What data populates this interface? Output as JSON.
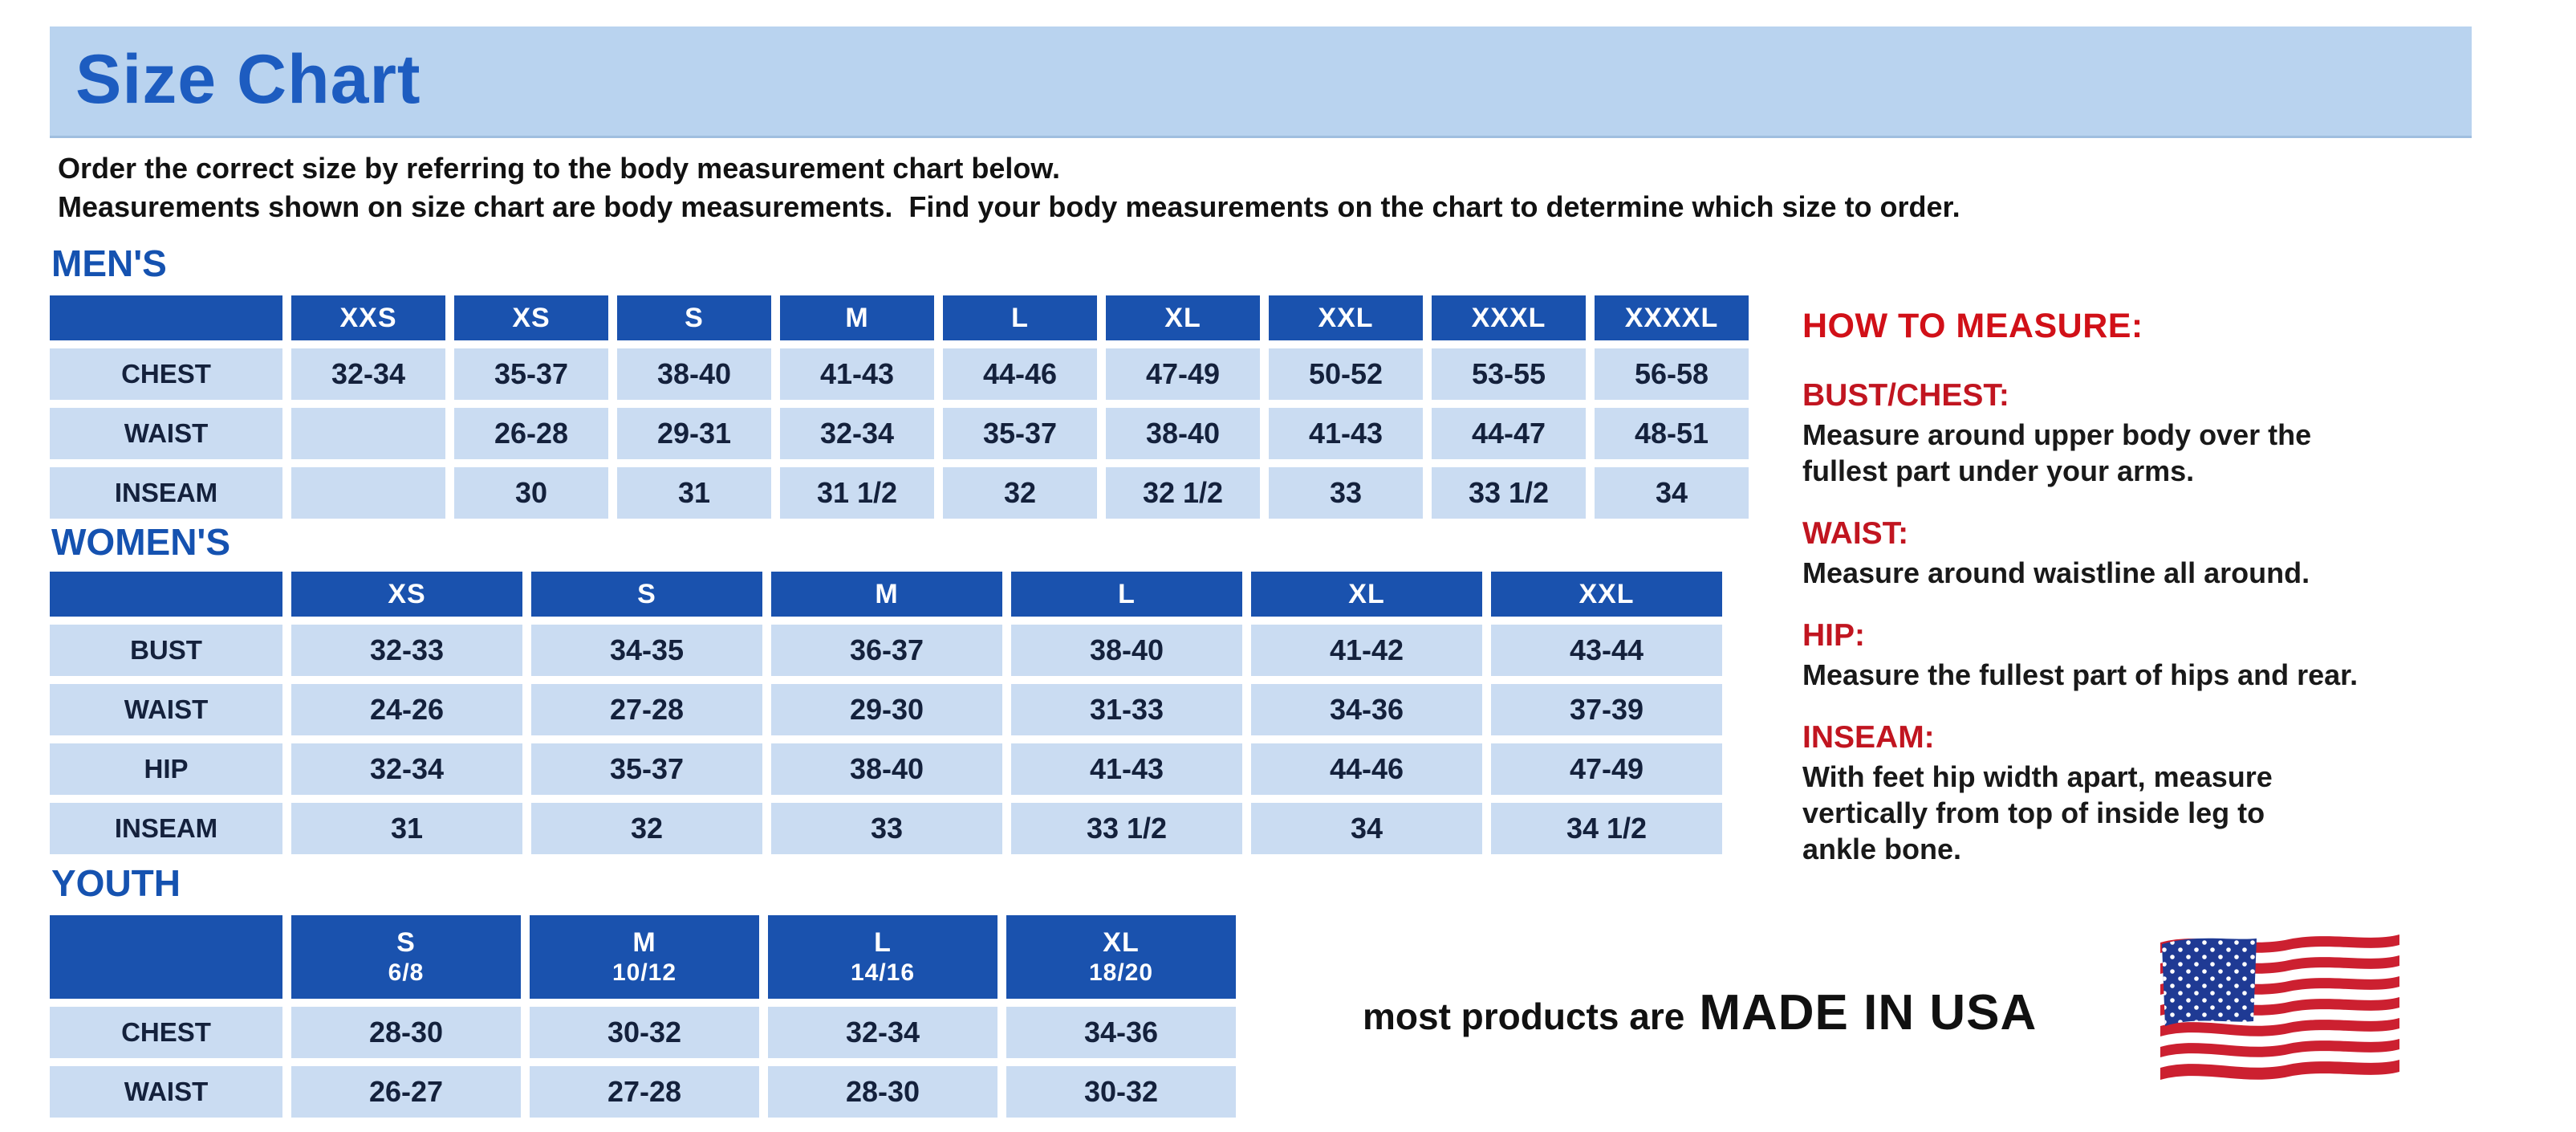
{
  "page": {
    "title": "Size Chart",
    "intro_line1": "Order the correct size by referring to the body measurement chart below.",
    "intro_line2": "Measurements shown on size chart are body measurements.  Find your body measurements on the chart to determine which size to order."
  },
  "colors": {
    "banner_bg": "#b9d3ef",
    "heading_blue": "#1552b0",
    "table_header_bg": "#1a52ae",
    "table_cell_bg": "#cadcf2",
    "cell_text": "#14213c",
    "accent_red": "#c11520"
  },
  "tables": {
    "mens": {
      "section_label": "MEN'S",
      "columns": [
        "XXS",
        "XS",
        "S",
        "M",
        "L",
        "XL",
        "XXL",
        "XXXL",
        "XXXXL"
      ],
      "rows": [
        {
          "label": "CHEST",
          "values": [
            "32-34",
            "35-37",
            "38-40",
            "41-43",
            "44-46",
            "47-49",
            "50-52",
            "53-55",
            "56-58"
          ]
        },
        {
          "label": "WAIST",
          "values": [
            "",
            "26-28",
            "29-31",
            "32-34",
            "35-37",
            "38-40",
            "41-43",
            "44-47",
            "48-51"
          ]
        },
        {
          "label": "INSEAM",
          "values": [
            "",
            "30",
            "31",
            "31 1/2",
            "32",
            "32 1/2",
            "33",
            "33 1/2",
            "34"
          ]
        }
      ]
    },
    "womens": {
      "section_label": "WOMEN'S",
      "columns": [
        "XS",
        "S",
        "M",
        "L",
        "XL",
        "XXL"
      ],
      "rows": [
        {
          "label": "BUST",
          "values": [
            "32-33",
            "34-35",
            "36-37",
            "38-40",
            "41-42",
            "43-44"
          ]
        },
        {
          "label": "WAIST",
          "values": [
            "24-26",
            "27-28",
            "29-30",
            "31-33",
            "34-36",
            "37-39"
          ]
        },
        {
          "label": "HIP",
          "values": [
            "32-34",
            "35-37",
            "38-40",
            "41-43",
            "44-46",
            "47-49"
          ]
        },
        {
          "label": "INSEAM",
          "values": [
            "31",
            "32",
            "33",
            "33 1/2",
            "34",
            "34 1/2"
          ]
        }
      ]
    },
    "youth": {
      "section_label": "YOUTH",
      "columns": [
        {
          "size": "S",
          "range": "6/8"
        },
        {
          "size": "M",
          "range": "10/12"
        },
        {
          "size": "L",
          "range": "14/16"
        },
        {
          "size": "XL",
          "range": "18/20"
        }
      ],
      "rows": [
        {
          "label": "CHEST",
          "values": [
            "28-30",
            "30-32",
            "32-34",
            "34-36"
          ]
        },
        {
          "label": "WAIST",
          "values": [
            "26-27",
            "27-28",
            "28-30",
            "30-32"
          ]
        }
      ]
    }
  },
  "how_to_measure": {
    "title": "HOW TO MEASURE:",
    "items": [
      {
        "label": "BUST/CHEST:",
        "lines": [
          "Measure around upper body over the",
          "fullest part under your arms."
        ]
      },
      {
        "label": "WAIST:",
        "lines": [
          "Measure around waistline all around."
        ]
      },
      {
        "label": "HIP:",
        "lines": [
          "Measure the fullest part of hips and rear."
        ]
      },
      {
        "label": "INSEAM:",
        "lines": [
          "With feet hip width apart, measure",
          "vertically from top of inside leg to",
          "ankle bone."
        ]
      }
    ]
  },
  "footer": {
    "prefix": "most products are",
    "emphasis": "MADE IN USA",
    "flag_icon": "usa-flag-icon"
  }
}
